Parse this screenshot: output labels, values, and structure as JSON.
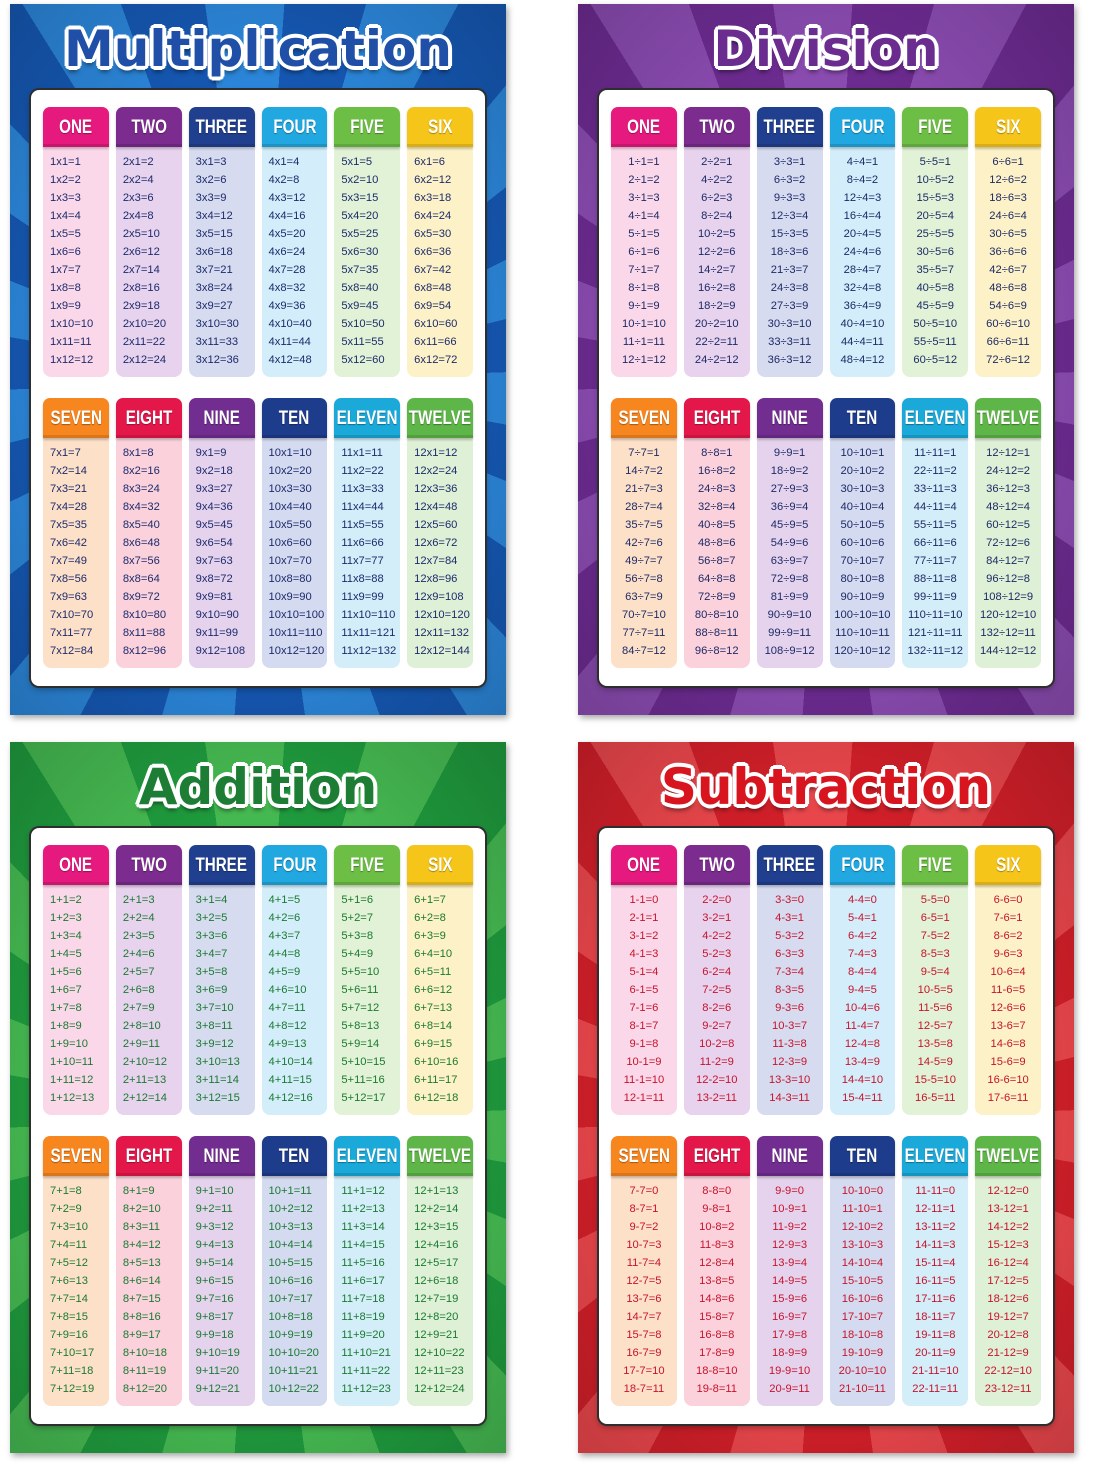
{
  "column_colors": [
    {
      "header": "#e6197e",
      "body": "#fbd8e9"
    },
    {
      "header": "#7c2b8f",
      "body": "#e7d3ee"
    },
    {
      "header": "#203f8e",
      "body": "#d6dbf0"
    },
    {
      "header": "#22a8e0",
      "body": "#d3eefa"
    },
    {
      "header": "#6dbe45",
      "body": "#e1f2d6"
    },
    {
      "header": "#f6c51a",
      "body": "#fdf2c7"
    },
    {
      "header": "#f7861f",
      "body": "#fde0c8"
    },
    {
      "header": "#e4174b",
      "body": "#fbd2dc"
    },
    {
      "header": "#722d91",
      "body": "#e5d3ee"
    },
    {
      "header": "#1e3c8c",
      "body": "#d4daef"
    },
    {
      "header": "#1ba9d9",
      "body": "#d3edf9"
    },
    {
      "header": "#5fb648",
      "body": "#def0d5"
    }
  ],
  "posters": [
    {
      "title": "Multiplication",
      "colors": {
        "title": "#1f4fa6",
        "text": "#1c2b6c",
        "ray_dark": "#1557b1",
        "ray_light": "#2b85d8"
      },
      "tables": [
        {
          "label": "ONE",
          "rows": [
            "1x1=1",
            "1x2=2",
            "1x3=3",
            "1x4=4",
            "1x5=5",
            "1x6=6",
            "1x7=7",
            "1x8=8",
            "1x9=9",
            "1x10=10",
            "1x11=11",
            "1x12=12"
          ]
        },
        {
          "label": "TWO",
          "rows": [
            "2x1=2",
            "2x2=4",
            "2x3=6",
            "2x4=8",
            "2x5=10",
            "2x6=12",
            "2x7=14",
            "2x8=16",
            "2x9=18",
            "2x10=20",
            "2x11=22",
            "2x12=24"
          ]
        },
        {
          "label": "THREE",
          "rows": [
            "3x1=3",
            "3x2=6",
            "3x3=9",
            "3x4=12",
            "3x5=15",
            "3x6=18",
            "3x7=21",
            "3x8=24",
            "3x9=27",
            "3x10=30",
            "3x11=33",
            "3x12=36"
          ]
        },
        {
          "label": "FOUR",
          "rows": [
            "4x1=4",
            "4x2=8",
            "4x3=12",
            "4x4=16",
            "4x5=20",
            "4x6=24",
            "4x7=28",
            "4x8=32",
            "4x9=36",
            "4x10=40",
            "4x11=44",
            "4x12=48"
          ]
        },
        {
          "label": "FIVE",
          "rows": [
            "5x1=5",
            "5x2=10",
            "5x3=15",
            "5x4=20",
            "5x5=25",
            "5x6=30",
            "5x7=35",
            "5x8=40",
            "5x9=45",
            "5x10=50",
            "5x11=55",
            "5x12=60"
          ]
        },
        {
          "label": "SIX",
          "rows": [
            "6x1=6",
            "6x2=12",
            "6x3=18",
            "6x4=24",
            "6x5=30",
            "6x6=36",
            "6x7=42",
            "6x8=48",
            "6x9=54",
            "6x10=60",
            "6x11=66",
            "6x12=72"
          ]
        },
        {
          "label": "SEVEN",
          "rows": [
            "7x1=7",
            "7x2=14",
            "7x3=21",
            "7x4=28",
            "7x5=35",
            "7x6=42",
            "7x7=49",
            "7x8=56",
            "7x9=63",
            "7x10=70",
            "7x11=77",
            "7x12=84"
          ]
        },
        {
          "label": "EIGHT",
          "rows": [
            "8x1=8",
            "8x2=16",
            "8x3=24",
            "8x4=32",
            "8x5=40",
            "8x6=48",
            "8x7=56",
            "8x8=64",
            "8x9=72",
            "8x10=80",
            "8x11=88",
            "8x12=96"
          ]
        },
        {
          "label": "NINE",
          "rows": [
            "9x1=9",
            "9x2=18",
            "9x3=27",
            "9x4=36",
            "9x5=45",
            "9x6=54",
            "9x7=63",
            "9x8=72",
            "9x9=81",
            "9x10=90",
            "9x11=99",
            "9x12=108"
          ]
        },
        {
          "label": "TEN",
          "rows": [
            "10x1=10",
            "10x2=20",
            "10x3=30",
            "10x4=40",
            "10x5=50",
            "10x6=60",
            "10x7=70",
            "10x8=80",
            "10x9=90",
            "10x10=100",
            "10x11=110",
            "10x12=120"
          ]
        },
        {
          "label": "ELEVEN",
          "rows": [
            "11x1=11",
            "11x2=22",
            "11x3=33",
            "11x4=44",
            "11x5=55",
            "11x6=66",
            "11x7=77",
            "11x8=88",
            "11x9=99",
            "11x10=110",
            "11x11=121",
            "11x12=132"
          ]
        },
        {
          "label": "TWELVE",
          "rows": [
            "12x1=12",
            "12x2=24",
            "12x3=36",
            "12x4=48",
            "12x5=60",
            "12x6=72",
            "12x7=84",
            "12x8=96",
            "12x9=108",
            "12x10=120",
            "12x11=132",
            "12x12=144"
          ]
        }
      ]
    },
    {
      "title": "Division",
      "colors": {
        "title": "#6a2c8f",
        "text": "#1c2a66",
        "ray_dark": "#6c2b90",
        "ray_light": "#8a4bb0"
      },
      "tables": [
        {
          "label": "ONE",
          "rows": [
            "1÷1=1",
            "2÷1=2",
            "3÷1=3",
            "4÷1=4",
            "5÷1=5",
            "6÷1=6",
            "7÷1=7",
            "8÷1=8",
            "9÷1=9",
            "10÷1=10",
            "11÷1=11",
            "12÷1=12"
          ]
        },
        {
          "label": "TWO",
          "rows": [
            "2÷2=1",
            "4÷2=2",
            "6÷2=3",
            "8÷2=4",
            "10÷2=5",
            "12÷2=6",
            "14÷2=7",
            "16÷2=8",
            "18÷2=9",
            "20÷2=10",
            "22÷2=11",
            "24÷2=12"
          ]
        },
        {
          "label": "THREE",
          "rows": [
            "3÷3=1",
            "6÷3=2",
            "9÷3=3",
            "12÷3=4",
            "15÷3=5",
            "18÷3=6",
            "21÷3=7",
            "24÷3=8",
            "27÷3=9",
            "30÷3=10",
            "33÷3=11",
            "36÷3=12"
          ]
        },
        {
          "label": "FOUR",
          "rows": [
            "4÷4=1",
            "8÷4=2",
            "12÷4=3",
            "16÷4=4",
            "20÷4=5",
            "24÷4=6",
            "28÷4=7",
            "32÷4=8",
            "36÷4=9",
            "40÷4=10",
            "44÷4=11",
            "48÷4=12"
          ]
        },
        {
          "label": "FIVE",
          "rows": [
            "5÷5=1",
            "10÷5=2",
            "15÷5=3",
            "20÷5=4",
            "25÷5=5",
            "30÷5=6",
            "35÷5=7",
            "40÷5=8",
            "45÷5=9",
            "50÷5=10",
            "55÷5=11",
            "60÷5=12"
          ]
        },
        {
          "label": "SIX",
          "rows": [
            "6÷6=1",
            "12÷6=2",
            "18÷6=3",
            "24÷6=4",
            "30÷6=5",
            "36÷6=6",
            "42÷6=7",
            "48÷6=8",
            "54÷6=9",
            "60÷6=10",
            "66÷6=11",
            "72÷6=12"
          ]
        },
        {
          "label": "SEVEN",
          "rows": [
            "7÷7=1",
            "14÷7=2",
            "21÷7=3",
            "28÷7=4",
            "35÷7=5",
            "42÷7=6",
            "49÷7=7",
            "56÷7=8",
            "63÷7=9",
            "70÷7=10",
            "77÷7=11",
            "84÷7=12"
          ]
        },
        {
          "label": "EIGHT",
          "rows": [
            "8÷8=1",
            "16÷8=2",
            "24÷8=3",
            "32÷8=4",
            "40÷8=5",
            "48÷8=6",
            "56÷8=7",
            "64÷8=8",
            "72÷8=9",
            "80÷8=10",
            "88÷8=11",
            "96÷8=12"
          ]
        },
        {
          "label": "NINE",
          "rows": [
            "9÷9=1",
            "18÷9=2",
            "27÷9=3",
            "36÷9=4",
            "45÷9=5",
            "54÷9=6",
            "63÷9=7",
            "72÷9=8",
            "81÷9=9",
            "90÷9=10",
            "99÷9=11",
            "108÷9=12"
          ]
        },
        {
          "label": "TEN",
          "rows": [
            "10÷10=1",
            "20÷10=2",
            "30÷10=3",
            "40÷10=4",
            "50÷10=5",
            "60÷10=6",
            "70÷10=7",
            "80÷10=8",
            "90÷10=9",
            "100÷10=10",
            "110÷10=11",
            "120÷10=12"
          ]
        },
        {
          "label": "ELEVEN",
          "rows": [
            "11÷11=1",
            "22÷11=2",
            "33÷11=3",
            "44÷11=4",
            "55÷11=5",
            "66÷11=6",
            "77÷11=7",
            "88÷11=8",
            "99÷11=9",
            "110÷11=10",
            "121÷11=11",
            "132÷11=12"
          ]
        },
        {
          "label": "TWELVE",
          "rows": [
            "12÷12=1",
            "24÷12=2",
            "36÷12=3",
            "48÷12=4",
            "60÷12=5",
            "72÷12=6",
            "84÷12=7",
            "96÷12=8",
            "108÷12=9",
            "120÷12=10",
            "132÷12=11",
            "144÷12=12"
          ]
        }
      ]
    },
    {
      "title": "Addition",
      "colors": {
        "title": "#1d7d34",
        "text": "#1a7a31",
        "ray_dark": "#1f9a3d",
        "ray_light": "#45b951"
      },
      "tables": [
        {
          "label": "ONE",
          "rows": [
            "1+1=2",
            "1+2=3",
            "1+3=4",
            "1+4=5",
            "1+5=6",
            "1+6=7",
            "1+7=8",
            "1+8=9",
            "1+9=10",
            "1+10=11",
            "1+11=12",
            "1+12=13"
          ]
        },
        {
          "label": "TWO",
          "rows": [
            "2+1=3",
            "2+2=4",
            "2+3=5",
            "2+4=6",
            "2+5=7",
            "2+6=8",
            "2+7=9",
            "2+8=10",
            "2+9=11",
            "2+10=12",
            "2+11=13",
            "2+12=14"
          ]
        },
        {
          "label": "THREE",
          "rows": [
            "3+1=4",
            "3+2=5",
            "3+3=6",
            "3+4=7",
            "3+5=8",
            "3+6=9",
            "3+7=10",
            "3+8=11",
            "3+9=12",
            "3+10=13",
            "3+11=14",
            "3+12=15"
          ]
        },
        {
          "label": "FOUR",
          "rows": [
            "4+1=5",
            "4+2=6",
            "4+3=7",
            "4+4=8",
            "4+5=9",
            "4+6=10",
            "4+7=11",
            "4+8=12",
            "4+9=13",
            "4+10=14",
            "4+11=15",
            "4+12=16"
          ]
        },
        {
          "label": "FIVE",
          "rows": [
            "5+1=6",
            "5+2=7",
            "5+3=8",
            "5+4=9",
            "5+5=10",
            "5+6=11",
            "5+7=12",
            "5+8=13",
            "5+9=14",
            "5+10=15",
            "5+11=16",
            "5+12=17"
          ]
        },
        {
          "label": "SIX",
          "rows": [
            "6+1=7",
            "6+2=8",
            "6+3=9",
            "6+4=10",
            "6+5=11",
            "6+6=12",
            "6+7=13",
            "6+8=14",
            "6+9=15",
            "6+10=16",
            "6+11=17",
            "6+12=18"
          ]
        },
        {
          "label": "SEVEN",
          "rows": [
            "7+1=8",
            "7+2=9",
            "7+3=10",
            "7+4=11",
            "7+5=12",
            "7+6=13",
            "7+7=14",
            "7+8=15",
            "7+9=16",
            "7+10=17",
            "7+11=18",
            "7+12=19"
          ]
        },
        {
          "label": "EIGHT",
          "rows": [
            "8+1=9",
            "8+2=10",
            "8+3=11",
            "8+4=12",
            "8+5=13",
            "8+6=14",
            "8+7=15",
            "8+8=16",
            "8+9=17",
            "8+10=18",
            "8+11=19",
            "8+12=20"
          ]
        },
        {
          "label": "NINE",
          "rows": [
            "9+1=10",
            "9+2=11",
            "9+3=12",
            "9+4=13",
            "9+5=14",
            "9+6=15",
            "9+7=16",
            "9+8=17",
            "9+9=18",
            "9+10=19",
            "9+11=20",
            "9+12=21"
          ]
        },
        {
          "label": "TEN",
          "rows": [
            "10+1=11",
            "10+2=12",
            "10+3=13",
            "10+4=14",
            "10+5=15",
            "10+6=16",
            "10+7=17",
            "10+8=18",
            "10+9=19",
            "10+10=20",
            "10+11=21",
            "10+12=22"
          ]
        },
        {
          "label": "ELEVEN",
          "rows": [
            "11+1=12",
            "11+2=13",
            "11+3=14",
            "11+4=15",
            "11+5=16",
            "11+6=17",
            "11+7=18",
            "11+8=19",
            "11+9=20",
            "11+10=21",
            "11+11=22",
            "11+12=23"
          ]
        },
        {
          "label": "TWELVE",
          "rows": [
            "12+1=13",
            "12+2=14",
            "12+3=15",
            "12+4=16",
            "12+5=17",
            "12+6=18",
            "12+7=19",
            "12+8=20",
            "12+9=21",
            "12+10=22",
            "12+11=23",
            "12+12=24"
          ]
        }
      ]
    },
    {
      "title": "Subtraction",
      "colors": {
        "title": "#d8151e",
        "text": "#c7132b",
        "ray_dark": "#d11f29",
        "ray_light": "#e9464b"
      },
      "tables": [
        {
          "label": "ONE",
          "rows": [
            "1-1=0",
            "2-1=1",
            "3-1=2",
            "4-1=3",
            "5-1=4",
            "6-1=5",
            "7-1=6",
            "8-1=7",
            "9-1=8",
            "10-1=9",
            "11-1=10",
            "12-1=11"
          ]
        },
        {
          "label": "TWO",
          "rows": [
            "2-2=0",
            "3-2=1",
            "4-2=2",
            "5-2=3",
            "6-2=4",
            "7-2=5",
            "8-2=6",
            "9-2=7",
            "10-2=8",
            "11-2=9",
            "12-2=10",
            "13-2=11"
          ]
        },
        {
          "label": "THREE",
          "rows": [
            "3-3=0",
            "4-3=1",
            "5-3=2",
            "6-3=3",
            "7-3=4",
            "8-3=5",
            "9-3=6",
            "10-3=7",
            "11-3=8",
            "12-3=9",
            "13-3=10",
            "14-3=11"
          ]
        },
        {
          "label": "FOUR",
          "rows": [
            "4-4=0",
            "5-4=1",
            "6-4=2",
            "7-4=3",
            "8-4=4",
            "9-4=5",
            "10-4=6",
            "11-4=7",
            "12-4=8",
            "13-4=9",
            "14-4=10",
            "15-4=11"
          ]
        },
        {
          "label": "FIVE",
          "rows": [
            "5-5=0",
            "6-5=1",
            "7-5=2",
            "8-5=3",
            "9-5=4",
            "10-5=5",
            "11-5=6",
            "12-5=7",
            "13-5=8",
            "14-5=9",
            "15-5=10",
            "16-5=11"
          ]
        },
        {
          "label": "SIX",
          "rows": [
            "6-6=0",
            "7-6=1",
            "8-6=2",
            "9-6=3",
            "10-6=4",
            "11-6=5",
            "12-6=6",
            "13-6=7",
            "14-6=8",
            "15-6=9",
            "16-6=10",
            "17-6=11"
          ]
        },
        {
          "label": "SEVEN",
          "rows": [
            "7-7=0",
            "8-7=1",
            "9-7=2",
            "10-7=3",
            "11-7=4",
            "12-7=5",
            "13-7=6",
            "14-7=7",
            "15-7=8",
            "16-7=9",
            "17-7=10",
            "18-7=11"
          ]
        },
        {
          "label": "EIGHT",
          "rows": [
            "8-8=0",
            "9-8=1",
            "10-8=2",
            "11-8=3",
            "12-8=4",
            "13-8=5",
            "14-8=6",
            "15-8=7",
            "16-8=8",
            "17-8=9",
            "18-8=10",
            "19-8=11"
          ]
        },
        {
          "label": "NINE",
          "rows": [
            "9-9=0",
            "10-9=1",
            "11-9=2",
            "12-9=3",
            "13-9=4",
            "14-9=5",
            "15-9=6",
            "16-9=7",
            "17-9=8",
            "18-9=9",
            "19-9=10",
            "20-9=11"
          ]
        },
        {
          "label": "TEN",
          "rows": [
            "10-10=0",
            "11-10=1",
            "12-10=2",
            "13-10=3",
            "14-10=4",
            "15-10=5",
            "16-10=6",
            "17-10=7",
            "18-10=8",
            "19-10=9",
            "20-10=10",
            "21-10=11"
          ]
        },
        {
          "label": "ELEVEN",
          "rows": [
            "11-11=0",
            "12-11=1",
            "13-11=2",
            "14-11=3",
            "15-11=4",
            "16-11=5",
            "17-11=6",
            "18-11=7",
            "19-11=8",
            "20-11=9",
            "21-11=10",
            "22-11=11"
          ]
        },
        {
          "label": "TWELVE",
          "rows": [
            "12-12=0",
            "13-12=1",
            "14-12=2",
            "15-12=3",
            "16-12=4",
            "17-12=5",
            "18-12=6",
            "19-12=7",
            "20-12=8",
            "21-12=9",
            "22-12=10",
            "23-12=11"
          ]
        }
      ]
    }
  ]
}
